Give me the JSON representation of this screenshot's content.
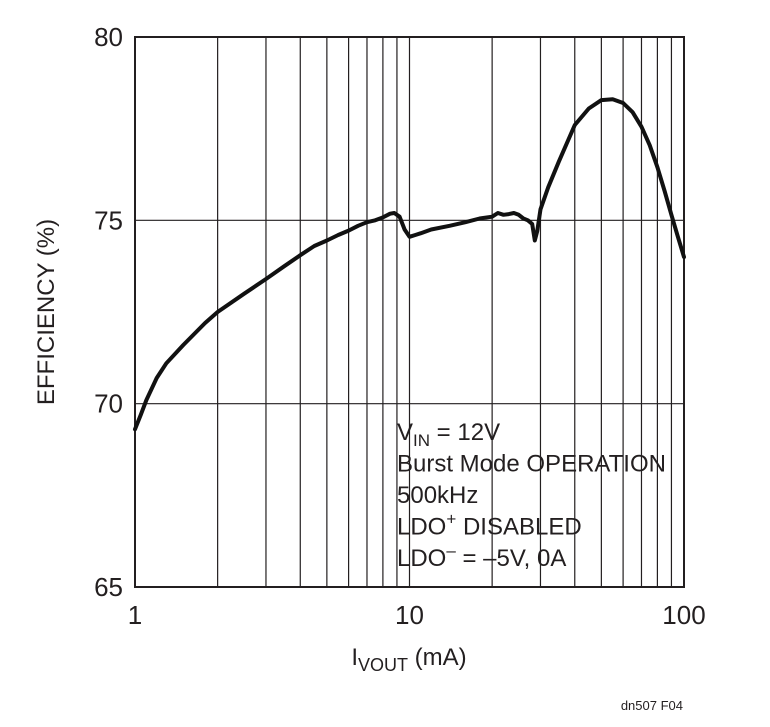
{
  "chart_data": {
    "type": "line",
    "xscale": "log",
    "xlim": [
      1,
      100
    ],
    "ylim": [
      65,
      80
    ],
    "grid": true,
    "xlabel": {
      "main": "I",
      "sub": "VOUT",
      "tail": " (mA)"
    },
    "ylabel": "EFFICIENCY (%)",
    "x_ticks": [
      1,
      10,
      100
    ],
    "x_tick_labels": [
      "1",
      "10",
      "100"
    ],
    "y_ticks": [
      65,
      70,
      75,
      80
    ],
    "y_tick_labels": [
      "65",
      "70",
      "75",
      "80"
    ],
    "series": [
      {
        "color": "#111111",
        "x": [
          1.0,
          1.05,
          1.1,
          1.2,
          1.3,
          1.5,
          1.8,
          2.0,
          2.5,
          3.0,
          3.5,
          4.0,
          4.5,
          5.0,
          5.5,
          6.0,
          6.5,
          7.0,
          7.5,
          8.0,
          8.5,
          8.8,
          9.2,
          9.6,
          10.0,
          10.5,
          11.0,
          12.0,
          14.0,
          16.0,
          18.0,
          20.0,
          21.0,
          22.0,
          23.0,
          24.0,
          25.0,
          26.0,
          27.0,
          28.0,
          28.6,
          29.2,
          30.0,
          32.0,
          35.0,
          40.0,
          45.0,
          50.0,
          55.0,
          60.0,
          65.0,
          70.0,
          75.0,
          80.0,
          85.0,
          90.0,
          95.0,
          100.0
        ],
        "y": [
          69.3,
          69.7,
          70.1,
          70.7,
          71.1,
          71.6,
          72.2,
          72.5,
          73.0,
          73.4,
          73.75,
          74.05,
          74.3,
          74.45,
          74.6,
          74.72,
          74.85,
          74.95,
          75.0,
          75.08,
          75.18,
          75.2,
          75.1,
          74.75,
          74.55,
          74.6,
          74.65,
          74.75,
          74.85,
          74.95,
          75.05,
          75.1,
          75.2,
          75.15,
          75.17,
          75.2,
          75.15,
          75.05,
          75.0,
          74.9,
          74.45,
          74.7,
          75.3,
          75.9,
          76.6,
          77.6,
          78.05,
          78.28,
          78.3,
          78.2,
          77.95,
          77.55,
          77.05,
          76.45,
          75.8,
          75.15,
          74.55,
          74.0
        ]
      }
    ],
    "annotation": {
      "lines": [
        {
          "main": "V",
          "sub": "IN",
          "sup": "",
          "tail": " = 12V"
        },
        {
          "main": "Burst Mode OPERATION",
          "sub": "",
          "sup": "",
          "tail": ""
        },
        {
          "main": "500kHz",
          "sub": "",
          "sup": "",
          "tail": ""
        },
        {
          "main": "LDO",
          "sub": "",
          "sup": "+",
          "tail": " DISABLED"
        },
        {
          "main": "LDO",
          "sub": "",
          "sup": "–",
          "tail": " = –5V, 0A"
        }
      ]
    }
  },
  "figure_id": "dn507 F04"
}
